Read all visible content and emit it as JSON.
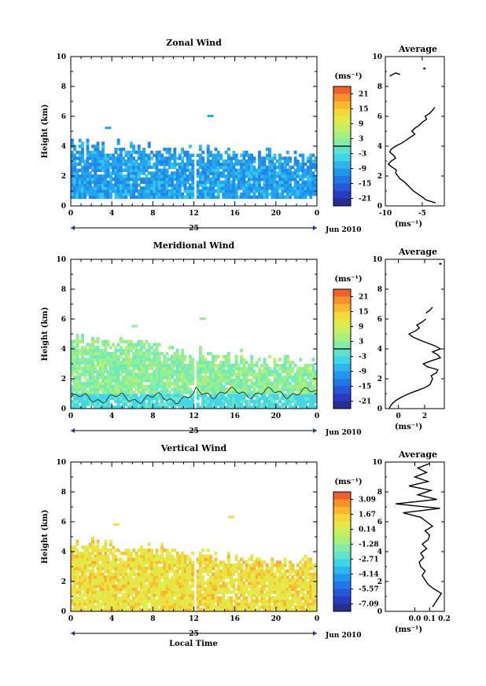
{
  "figure": {
    "bottom_xlabel": "Local Time"
  },
  "chart_data": [
    {
      "type": "heatmap",
      "title": "Zonal Wind",
      "ylabel": "Height (km)",
      "xlim": [
        0,
        24
      ],
      "ylim": [
        0,
        10
      ],
      "x_ticks": [
        "0",
        "4",
        "8",
        "12",
        "16",
        "20",
        "0"
      ],
      "y_ticks": [
        "0",
        "2",
        "4",
        "6",
        "8",
        "10"
      ],
      "date_day": "25",
      "date_label": "Jun 2010",
      "colorbar": {
        "unit": "(ms⁻¹)",
        "tick_labels": [
          "21",
          "15",
          "9",
          "3",
          "-3",
          "-9",
          "-15",
          "-21"
        ],
        "range": [
          -24,
          24
        ],
        "contour_level": 0
      },
      "field": {
        "value": -9,
        "value_low": -12,
        "value_high": -6,
        "bottom_km": 0.5,
        "top_km_left": 4.2,
        "top_km_right": 3.2,
        "stray_echoes_km": [
          5.3,
          6.1
        ]
      },
      "average": {
        "title": "Average",
        "xlim": [
          -10,
          -2
        ],
        "x_ticks": [
          "-10",
          "-5"
        ],
        "unit": "(ms⁻¹)",
        "height_km": [
          0.2,
          0.4,
          0.6,
          0.8,
          1.0,
          1.2,
          1.4,
          1.6,
          1.8,
          2.0,
          2.2,
          2.4,
          2.6,
          2.8,
          3.0,
          3.2,
          3.4,
          3.6,
          3.8,
          4.0,
          4.2,
          4.4,
          4.6,
          4.8,
          5.0,
          5.2,
          5.4,
          5.6,
          5.8,
          6.0,
          6.2,
          6.4,
          6.6
        ],
        "value": [
          -3.2,
          -4.5,
          -5.0,
          -5.6,
          -6.2,
          -6.6,
          -7.0,
          -7.4,
          -8.0,
          -8.3,
          -8.6,
          -8.5,
          -9.1,
          -9.6,
          -9.2,
          -8.6,
          -8.9,
          -9.4,
          -9.2,
          -8.6,
          -7.8,
          -7.2,
          -6.6,
          -6.0,
          -6.4,
          -6.0,
          -5.4,
          -5.0,
          -4.4,
          -4.6,
          -4.0,
          -3.6,
          -3.3
        ],
        "upper_segment": {
          "height_km": [
            8.7,
            8.9,
            8.8
          ],
          "value": [
            -9.4,
            -8.6,
            -8.0
          ]
        },
        "upper_point": {
          "height_km": 9.2,
          "value": -4.7
        }
      }
    },
    {
      "type": "heatmap",
      "title": "Meridional Wind",
      "ylabel": "Height (km)",
      "xlim": [
        0,
        24
      ],
      "ylim": [
        0,
        10
      ],
      "x_ticks": [
        "0",
        "4",
        "8",
        "12",
        "16",
        "20",
        "0"
      ],
      "y_ticks": [
        "0",
        "2",
        "4",
        "6",
        "8",
        "10"
      ],
      "date_day": "25",
      "date_label": "Jun 2010",
      "colorbar": {
        "unit": "(ms⁻¹)",
        "tick_labels": [
          "21",
          "15",
          "9",
          "3",
          "-3",
          "-9",
          "-15",
          "-21"
        ],
        "range": [
          -24,
          24
        ],
        "contour_level": 0
      },
      "field": {
        "value": 3,
        "value_low": 0,
        "value_high": 6,
        "bottom_km": 0,
        "top_km_left": 4.6,
        "top_km_right": 3.0,
        "stray_echoes_km": [
          5.6,
          6.1
        ]
      },
      "average": {
        "title": "Average",
        "xlim": [
          -1,
          3.5
        ],
        "x_ticks": [
          "0",
          "2"
        ],
        "unit": "(ms⁻¹)",
        "height_km": [
          0.0,
          0.2,
          0.4,
          0.6,
          0.8,
          1.0,
          1.2,
          1.4,
          1.6,
          1.8,
          2.0,
          2.2,
          2.4,
          2.6,
          2.8,
          3.0,
          3.2,
          3.4,
          3.6,
          3.8,
          4.0,
          4.2,
          4.4,
          4.6,
          4.8,
          5.0,
          5.2,
          5.4,
          5.6,
          5.8,
          6.0
        ],
        "value": [
          -0.7,
          -0.6,
          -0.4,
          -0.1,
          0.3,
          0.8,
          1.4,
          2.0,
          2.4,
          2.5,
          2.6,
          2.5,
          2.9,
          3.0,
          2.2,
          1.9,
          2.5,
          3.2,
          3.0,
          2.6,
          3.2,
          2.8,
          2.2,
          1.6,
          1.1,
          0.8,
          1.3,
          1.6,
          1.4,
          1.8,
          2.1
        ],
        "upper_segment": {
          "height_km": [
            6.4,
            6.6,
            6.8
          ],
          "value": [
            2.1,
            2.4,
            2.6
          ]
        },
        "upper_point": {
          "height_km": 9.7,
          "value": 3.2
        }
      }
    },
    {
      "type": "heatmap",
      "title": "Vertical Wind",
      "ylabel": "Height (km)",
      "xlabel": "Local Time",
      "xlim": [
        0,
        24
      ],
      "ylim": [
        0,
        10
      ],
      "x_ticks": [
        "0",
        "4",
        "8",
        "12",
        "16",
        "20",
        "0"
      ],
      "y_ticks": [
        "0",
        "2",
        "4",
        "6",
        "8",
        "10"
      ],
      "date_day": "25",
      "date_label": "Jun 2010",
      "colorbar": {
        "unit": "(ms⁻¹)",
        "tick_labels": [
          "3.09",
          "1.67",
          "0.14",
          "-1.28",
          "-2.71",
          "-4.14",
          "-5.57",
          "-7.09"
        ],
        "range": [
          -7.8,
          3.8
        ],
        "contour_level": null
      },
      "field": {
        "value": 0.9,
        "value_low": 0.4,
        "value_high": 1.8,
        "bottom_km": 0,
        "top_km_left": 4.6,
        "top_km_right": 3.2,
        "stray_echoes_km": [
          5.9,
          6.4
        ]
      },
      "average": {
        "title": "Average",
        "xlim": [
          -0.2,
          0.2
        ],
        "x_ticks": [
          "0.0",
          "0.1",
          "0.2"
        ],
        "unit": "(ms⁻¹)",
        "height_km": [
          0.3,
          0.6,
          0.9,
          1.2,
          1.5,
          1.8,
          2.1,
          2.4,
          2.7,
          3.0,
          3.3,
          3.6,
          3.9,
          4.2,
          4.5,
          4.8,
          5.1,
          5.4,
          5.7,
          6.0,
          6.3,
          6.6,
          6.9,
          7.2,
          7.5,
          7.8,
          8.1,
          8.4,
          8.7,
          9.0,
          9.3,
          9.6,
          9.9
        ],
        "value": [
          0.12,
          0.14,
          0.16,
          0.18,
          0.13,
          0.09,
          0.07,
          0.05,
          0.07,
          0.04,
          0.03,
          0.06,
          0.04,
          0.08,
          0.05,
          0.09,
          0.1,
          0.07,
          0.12,
          0.08,
          0.04,
          -0.08,
          0.17,
          -0.13,
          0.15,
          0.02,
          0.11,
          -0.04,
          0.09,
          0.0,
          0.08,
          0.02,
          0.1
        ]
      }
    }
  ]
}
